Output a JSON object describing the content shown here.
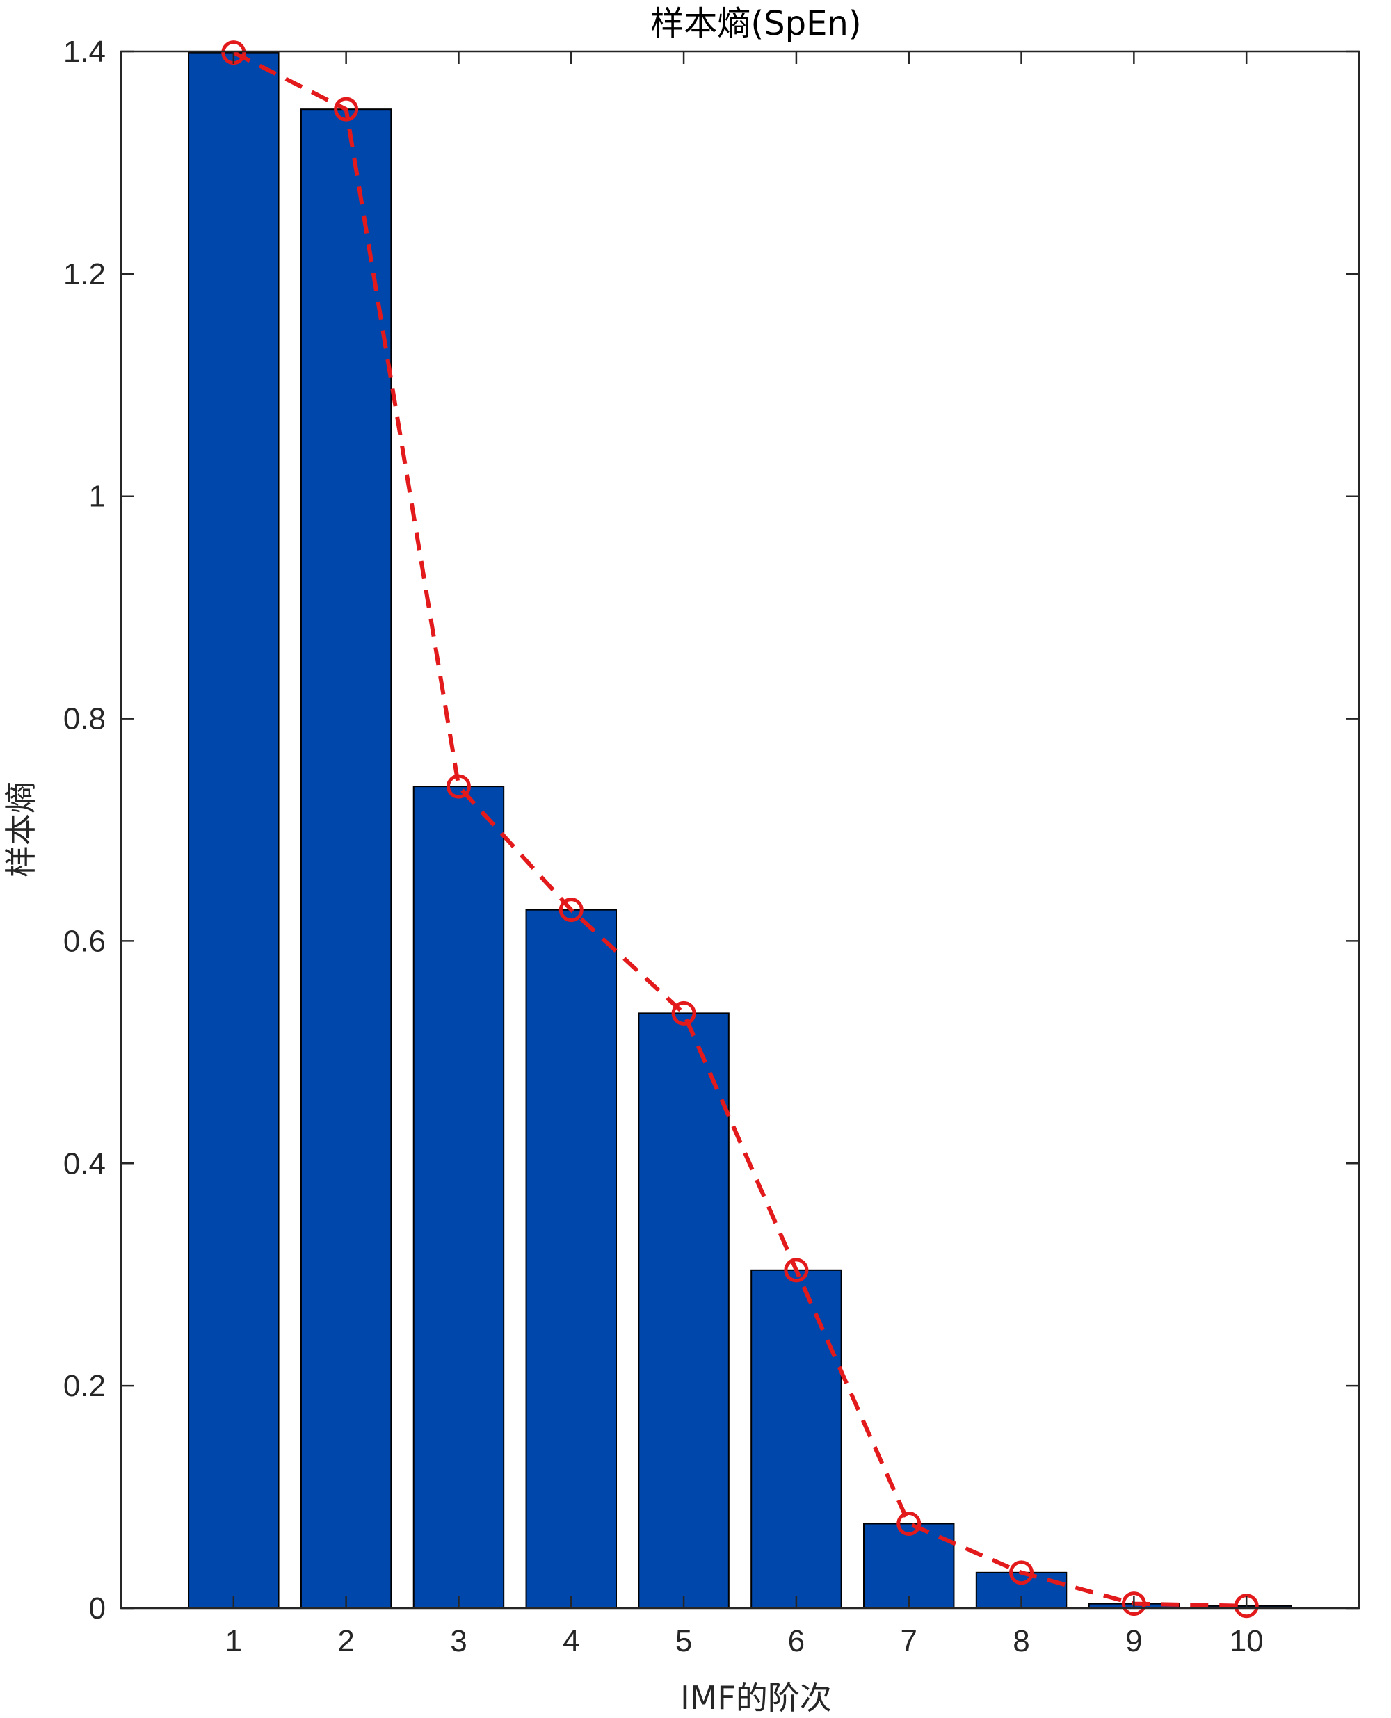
{
  "chart_data": {
    "type": "bar",
    "title": "样本熵(SpEn)",
    "xlabel": "IMF的阶次",
    "ylabel": "样本熵",
    "categories": [
      "1",
      "2",
      "3",
      "4",
      "5",
      "6",
      "7",
      "8",
      "9",
      "10"
    ],
    "values": [
      1.399,
      1.348,
      0.739,
      0.628,
      0.535,
      0.304,
      0.076,
      0.032,
      0.004,
      0.002
    ],
    "series": [
      {
        "name": "bar",
        "kind": "bar",
        "values": [
          1.399,
          1.348,
          0.739,
          0.628,
          0.535,
          0.304,
          0.076,
          0.032,
          0.004,
          0.002
        ],
        "color": "#0047AB"
      },
      {
        "name": "line",
        "kind": "line-dashed-circle-markers",
        "values": [
          1.399,
          1.348,
          0.739,
          0.628,
          0.535,
          0.304,
          0.076,
          0.032,
          0.004,
          0.002
        ],
        "color": "#E31A1C"
      }
    ],
    "xlim": [
      0,
      11
    ],
    "ylim": [
      0,
      1.4
    ],
    "yticks": [
      "0",
      "0.2",
      "0.4",
      "0.6",
      "0.8",
      "1",
      "1.2",
      "1.4"
    ],
    "ytick_values": [
      0,
      0.2,
      0.4,
      0.6,
      0.8,
      1.0,
      1.2,
      1.4
    ],
    "grid": false,
    "legend": "none"
  }
}
